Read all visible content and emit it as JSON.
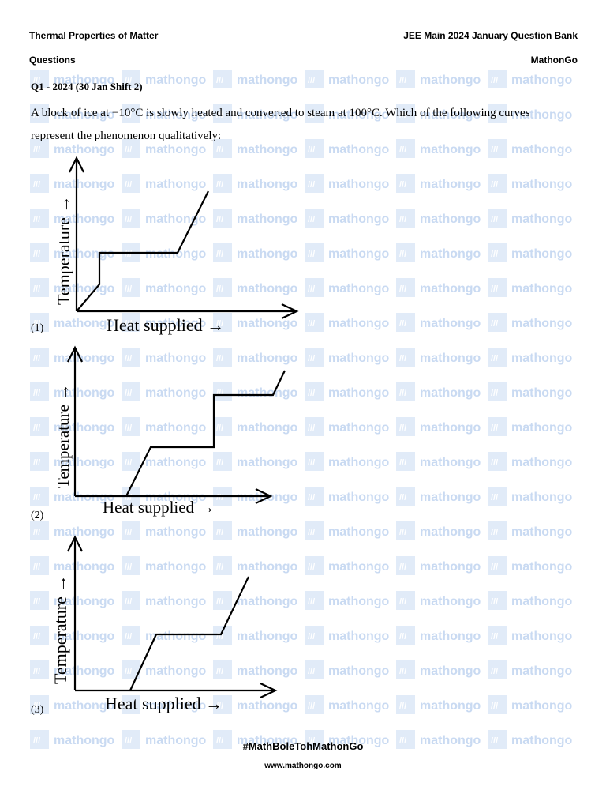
{
  "header": {
    "subject": "Thermal Properties of Matter",
    "bank": "JEE Main 2024 January Question Bank",
    "section": "Questions",
    "brand": "MathonGo"
  },
  "watermark": {
    "text": "mathongo",
    "badge": "///"
  },
  "question": {
    "label": "Q1 - 2024 (30 Jan Shift 2)",
    "text": "A block of ice at −10°C is slowly heated and converted to steam at 100°C. Which of the following curves represent the phenomenon qualitatively:"
  },
  "options": [
    {
      "number": "(1)",
      "x_label": "Heat supplied →",
      "y_label": "Temperature →"
    },
    {
      "number": "(2)",
      "x_label": "Heat supplied →",
      "y_label": "Temperature →"
    },
    {
      "number": "(3)",
      "x_label": "Heat supplied →",
      "y_label": "Temperature →"
    }
  ],
  "footer": {
    "hashtag": "#MathBoleTohMathonGo",
    "url": "www.mathongo.com"
  },
  "colors": {
    "watermark": "#c9daf2",
    "text": "#000000"
  }
}
